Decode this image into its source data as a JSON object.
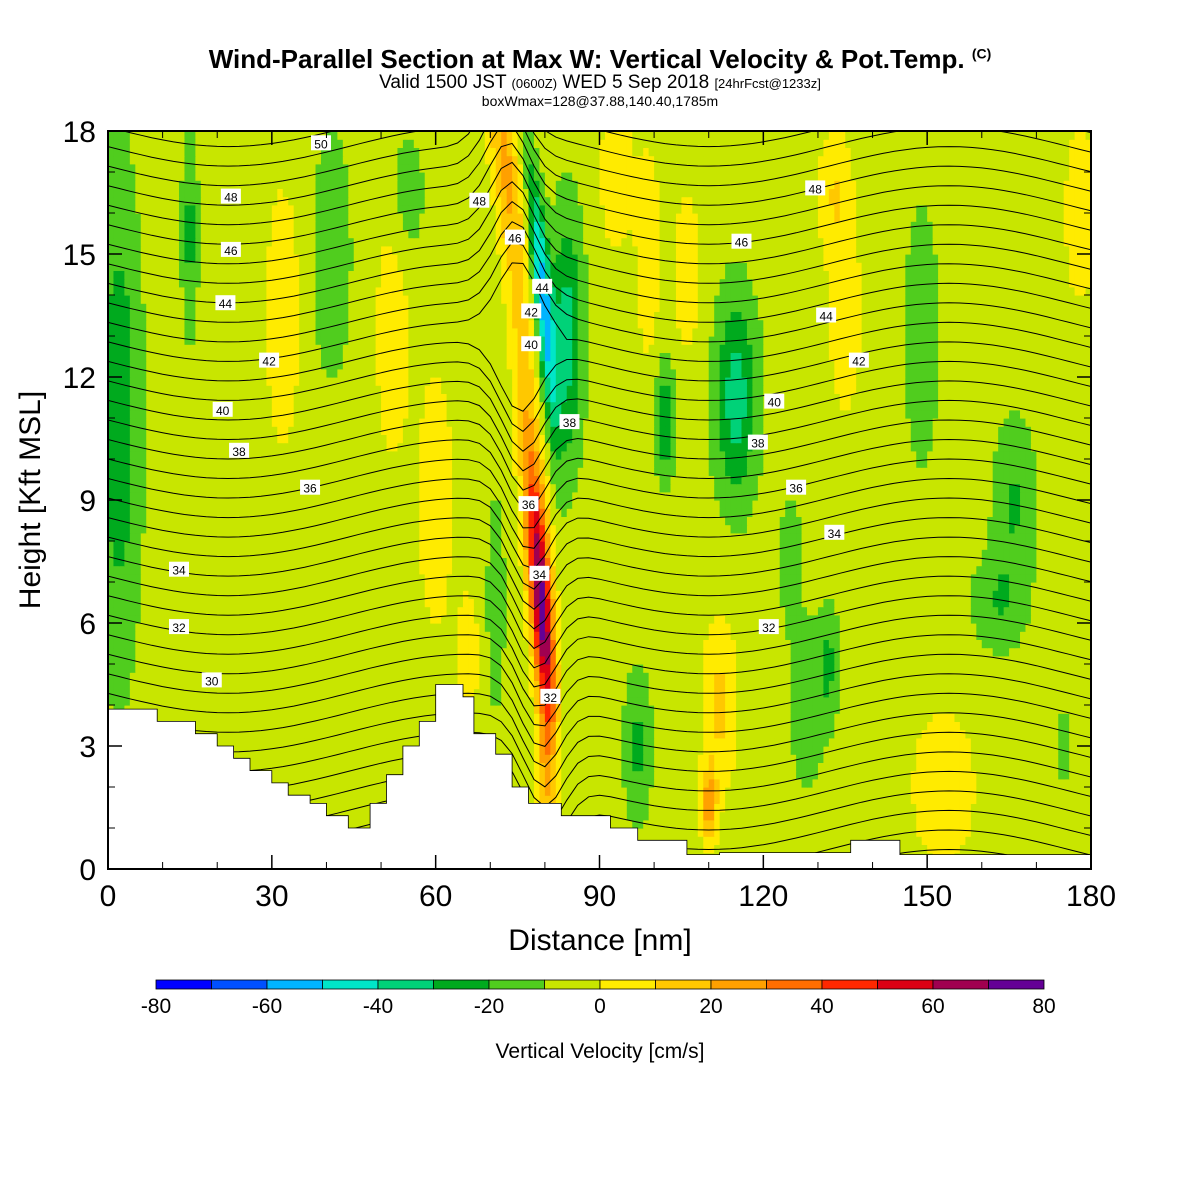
{
  "header": {
    "title_main": "Wind-Parallel Section at Max W: Vertical Velocity & Pot.Temp.",
    "title_unit": "(C)",
    "valid_prefix": "Valid 1500 JST",
    "valid_utc": "(0600Z)",
    "valid_date": "WED 5 Sep 2018",
    "forecast": "[24hrFcst@1233z]",
    "boxwmax": "boxWmax=128@37.88,140.40,1785m"
  },
  "chart_data": {
    "type": "heatmap",
    "xlabel": "Distance [nm]",
    "ylabel": "Height [Kft MSL]",
    "xlim": [
      0,
      180
    ],
    "ylim": [
      0,
      18
    ],
    "x_ticks": [
      "0",
      "30",
      "60",
      "90",
      "120",
      "150",
      "180"
    ],
    "y_ticks": [
      "0",
      "3",
      "6",
      "9",
      "12",
      "15",
      "18"
    ],
    "colorbar": {
      "label": "Vertical Velocity [cm/s]",
      "range": [
        -80,
        80
      ],
      "ticks": [
        "-80",
        "-60",
        "-40",
        "-20",
        "0",
        "20",
        "40",
        "60",
        "80"
      ],
      "colors": [
        "#0000ff",
        "#0050ff",
        "#00b4ff",
        "#00e6c8",
        "#00d278",
        "#00aa1e",
        "#50cd1e",
        "#c8e600",
        "#ffeb00",
        "#ffc800",
        "#ffa000",
        "#ff6e00",
        "#ff2800",
        "#dc0014",
        "#a00050",
        "#640096"
      ]
    },
    "max_updraft": {
      "x": 81,
      "height": 6,
      "value": 80
    },
    "max_downdraft": {
      "x": 84,
      "height": 14.5,
      "value": -45
    },
    "contour_labels": [
      {
        "text": "50",
        "x": 39,
        "y": 17.7
      },
      {
        "text": "48",
        "x": 22.5,
        "y": 16.4
      },
      {
        "text": "46",
        "x": 22.5,
        "y": 15.1
      },
      {
        "text": "44",
        "x": 21.5,
        "y": 13.8
      },
      {
        "text": "42",
        "x": 29.5,
        "y": 12.4
      },
      {
        "text": "40",
        "x": 21,
        "y": 11.2
      },
      {
        "text": "38",
        "x": 24,
        "y": 10.2
      },
      {
        "text": "36",
        "x": 37,
        "y": 9.3
      },
      {
        "text": "34",
        "x": 13,
        "y": 7.3
      },
      {
        "text": "32",
        "x": 13,
        "y": 5.9
      },
      {
        "text": "30",
        "x": 19,
        "y": 4.6
      },
      {
        "text": "48",
        "x": 68,
        "y": 16.3
      },
      {
        "text": "46",
        "x": 74.5,
        "y": 15.4
      },
      {
        "text": "44",
        "x": 79.5,
        "y": 14.2
      },
      {
        "text": "42",
        "x": 77.5,
        "y": 13.6
      },
      {
        "text": "40",
        "x": 77.5,
        "y": 12.8
      },
      {
        "text": "38",
        "x": 84.5,
        "y": 10.9
      },
      {
        "text": "36",
        "x": 77,
        "y": 8.9
      },
      {
        "text": "34",
        "x": 79,
        "y": 7.2
      },
      {
        "text": "32",
        "x": 81,
        "y": 4.2
      },
      {
        "text": "48",
        "x": 129.5,
        "y": 16.6
      },
      {
        "text": "46",
        "x": 116,
        "y": 15.3
      },
      {
        "text": "44",
        "x": 131.5,
        "y": 13.5
      },
      {
        "text": "42",
        "x": 137.5,
        "y": 12.4
      },
      {
        "text": "40",
        "x": 122,
        "y": 11.4
      },
      {
        "text": "38",
        "x": 119,
        "y": 10.4
      },
      {
        "text": "36",
        "x": 126,
        "y": 9.3
      },
      {
        "text": "34",
        "x": 133,
        "y": 8.2
      },
      {
        "text": "32",
        "x": 121,
        "y": 5.9
      }
    ]
  }
}
